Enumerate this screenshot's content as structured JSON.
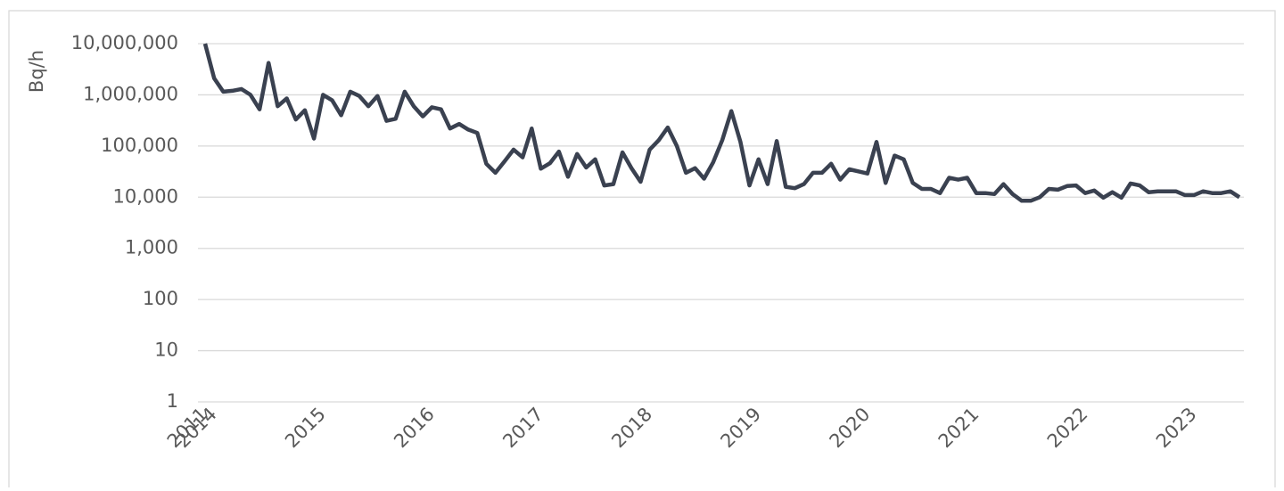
{
  "chart_data": {
    "type": "line",
    "y_label": "Bq/h",
    "log_scale": true,
    "grid": true,
    "categories": [
      "2011",
      "2014",
      null,
      null,
      null,
      null,
      null,
      null,
      null,
      null,
      null,
      null,
      null,
      "2015",
      null,
      null,
      null,
      null,
      null,
      null,
      null,
      null,
      null,
      null,
      null,
      "2016",
      null,
      null,
      null,
      null,
      null,
      null,
      null,
      null,
      null,
      null,
      null,
      "2017",
      null,
      null,
      null,
      null,
      null,
      null,
      null,
      null,
      null,
      null,
      null,
      "2018",
      null,
      null,
      null,
      null,
      null,
      null,
      null,
      null,
      null,
      null,
      null,
      "2019",
      null,
      null,
      null,
      null,
      null,
      null,
      null,
      null,
      null,
      null,
      null,
      "2020",
      null,
      null,
      null,
      null,
      null,
      null,
      null,
      null,
      null,
      null,
      null,
      "2021",
      null,
      null,
      null,
      null,
      null,
      null,
      null,
      null,
      null,
      null,
      null,
      "2022",
      null,
      null,
      null,
      null,
      null,
      null,
      null,
      null,
      null,
      null,
      null,
      "2023",
      null,
      null,
      null,
      null,
      null
    ],
    "series": [
      {
        "color": "#3a4150",
        "values": [
          10000000,
          2100000,
          1150000,
          1200000,
          1300000,
          1000000,
          520000,
          4200000,
          600000,
          850000,
          330000,
          500000,
          140000,
          1000000,
          780000,
          400000,
          1150000,
          950000,
          600000,
          950000,
          310000,
          340000,
          1150000,
          600000,
          380000,
          570000,
          520000,
          220000,
          270000,
          210000,
          180000,
          45000,
          30000,
          50000,
          85000,
          60000,
          220000,
          36000,
          46000,
          78000,
          25000,
          70000,
          38000,
          55000,
          17000,
          18000,
          75000,
          37000,
          20000,
          85000,
          130000,
          230000,
          100000,
          30000,
          37000,
          23000,
          48000,
          130000,
          480000,
          120000,
          17000,
          55000,
          18000,
          125000,
          16000,
          15000,
          18000,
          30000,
          30000,
          45000,
          22000,
          35000,
          32000,
          29000,
          120000,
          19000,
          65000,
          55000,
          19000,
          14500,
          14500,
          12000,
          24000,
          22000,
          24000,
          12000,
          12000,
          11500,
          18000,
          11500,
          8500,
          8500,
          10000,
          14500,
          14000,
          16500,
          17000,
          12000,
          13500,
          9800,
          12500,
          9800,
          18500,
          17000,
          12500,
          13000,
          13000,
          13000,
          11000,
          11000,
          13000,
          12000,
          12000,
          13000,
          10000
        ]
      }
    ],
    "ylim": [
      1,
      10000000
    ],
    "yticks": [
      1,
      10,
      100,
      {
        "value": 1000,
        "label": "1,000"
      },
      {
        "value": 10000,
        "label": "10,000"
      },
      {
        "value": 100000,
        "label": "100,000"
      },
      {
        "value": 1000000,
        "label": "1,000,000"
      },
      {
        "value": 10000000,
        "label": "10,000,000"
      }
    ]
  }
}
